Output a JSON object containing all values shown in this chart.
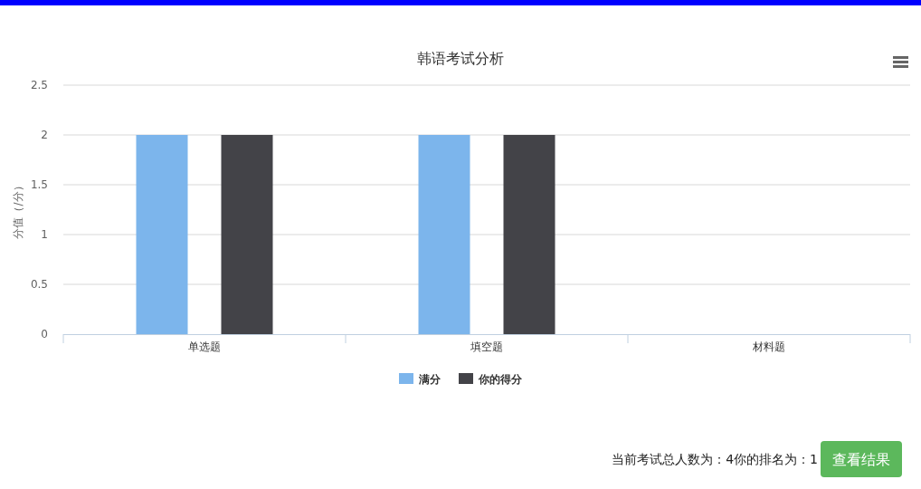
{
  "chart_data": {
    "type": "bar",
    "title": "韩语考试分析",
    "ylabel": "分值（/分）",
    "categories": [
      "单选题",
      "填空题",
      "材料题"
    ],
    "series": [
      {
        "name": "满分",
        "color": "#7cb5ec",
        "values": [
          2,
          2,
          0
        ]
      },
      {
        "name": "你的得分",
        "color": "#434348",
        "values": [
          2,
          2,
          0
        ]
      }
    ],
    "ylim": [
      0,
      2.5
    ],
    "yticks": [
      0,
      0.5,
      1,
      1.5,
      2,
      2.5
    ],
    "grid": "y",
    "legend": "bottom",
    "annotations": [
      "当前考试总人数为：4你的排名为：1",
      "查看结果"
    ]
  }
}
